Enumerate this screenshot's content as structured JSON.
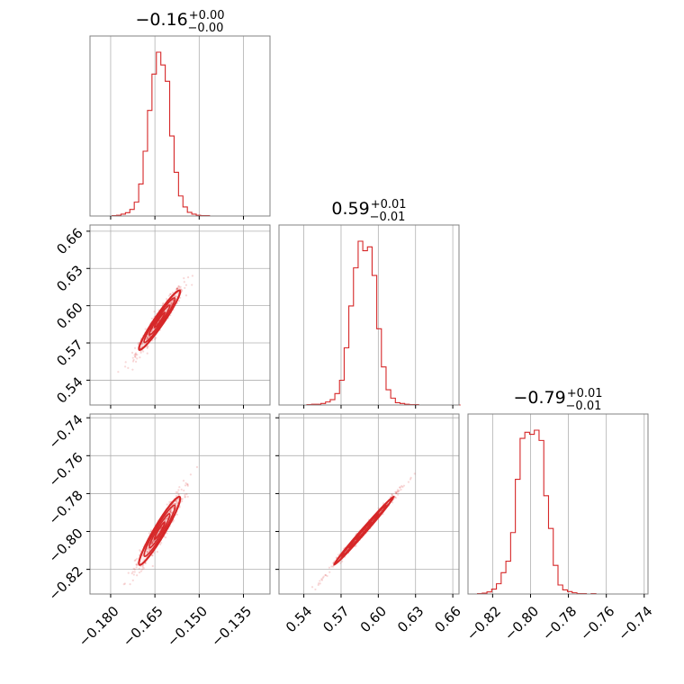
{
  "chart_data": {
    "type": "corner",
    "color": "#d62728",
    "grid": true,
    "parameters": [
      {
        "title_value": "−0.16",
        "title_plus": "+0.00",
        "title_minus": "−0.00",
        "range": [
          -0.187,
          -0.126
        ],
        "ticks": [
          -0.18,
          -0.165,
          -0.15,
          -0.135
        ],
        "tick_labels": [
          "−0.180",
          "−0.165",
          "−0.150",
          "−0.135"
        ],
        "hist_bin_width": 0.0015,
        "hist_edges_start": -0.187,
        "hist_counts": [
          0,
          0,
          0,
          0,
          0,
          1,
          2,
          5,
          9,
          18,
          38,
          88,
          178,
          290,
          390,
          450,
          415,
          370,
          220,
          120,
          55,
          25,
          10,
          5,
          2,
          1,
          1,
          0,
          0,
          0,
          0,
          0,
          0,
          0,
          0,
          0,
          0,
          0,
          0,
          0
        ]
      },
      {
        "title_value": "0.59",
        "title_plus": "+0.01",
        "title_minus": "−0.01",
        "range": [
          0.52,
          0.665
        ],
        "ticks": [
          0.54,
          0.57,
          0.6,
          0.63,
          0.66
        ],
        "tick_labels": [
          "0.54",
          "0.57",
          "0.60",
          "0.63",
          "0.66"
        ],
        "hist_bin_width": 0.00375,
        "hist_edges_start": 0.52,
        "hist_counts": [
          0,
          0,
          0,
          0,
          0,
          0,
          1,
          2,
          2,
          4,
          8,
          14,
          30,
          65,
          150,
          260,
          360,
          430,
          405,
          415,
          340,
          200,
          100,
          40,
          18,
          6,
          4,
          2,
          1,
          1,
          0,
          0,
          0,
          0,
          0,
          0,
          0,
          0,
          0,
          0
        ]
      },
      {
        "title_value": "−0.79",
        "title_plus": "+0.01",
        "title_minus": "−0.01",
        "range": [
          -0.833,
          -0.738
        ],
        "ticks": [
          -0.82,
          -0.8,
          -0.78,
          -0.76,
          -0.74
        ],
        "tick_labels": [
          "−0.82",
          "−0.80",
          "−0.78",
          "−0.76",
          "−0.74"
        ],
        "hist_bin_width": 0.0025,
        "hist_edges_start": -0.833,
        "hist_counts": [
          0,
          0,
          1,
          2,
          5,
          12,
          25,
          52,
          80,
          150,
          280,
          380,
          395,
          390,
          400,
          375,
          240,
          160,
          70,
          22,
          10,
          6,
          3,
          1,
          1,
          0,
          1,
          0,
          0,
          0,
          0,
          0,
          0,
          0,
          0,
          0,
          0,
          0
        ]
      }
    ],
    "correlations": [
      {
        "x": 0,
        "y": 1,
        "rho": 0.96
      },
      {
        "x": 0,
        "y": 2,
        "rho": 0.95
      },
      {
        "x": 1,
        "y": 2,
        "rho": 0.995
      }
    ],
    "estimated_sigma": [
      0.0035,
      0.012,
      0.009
    ]
  }
}
